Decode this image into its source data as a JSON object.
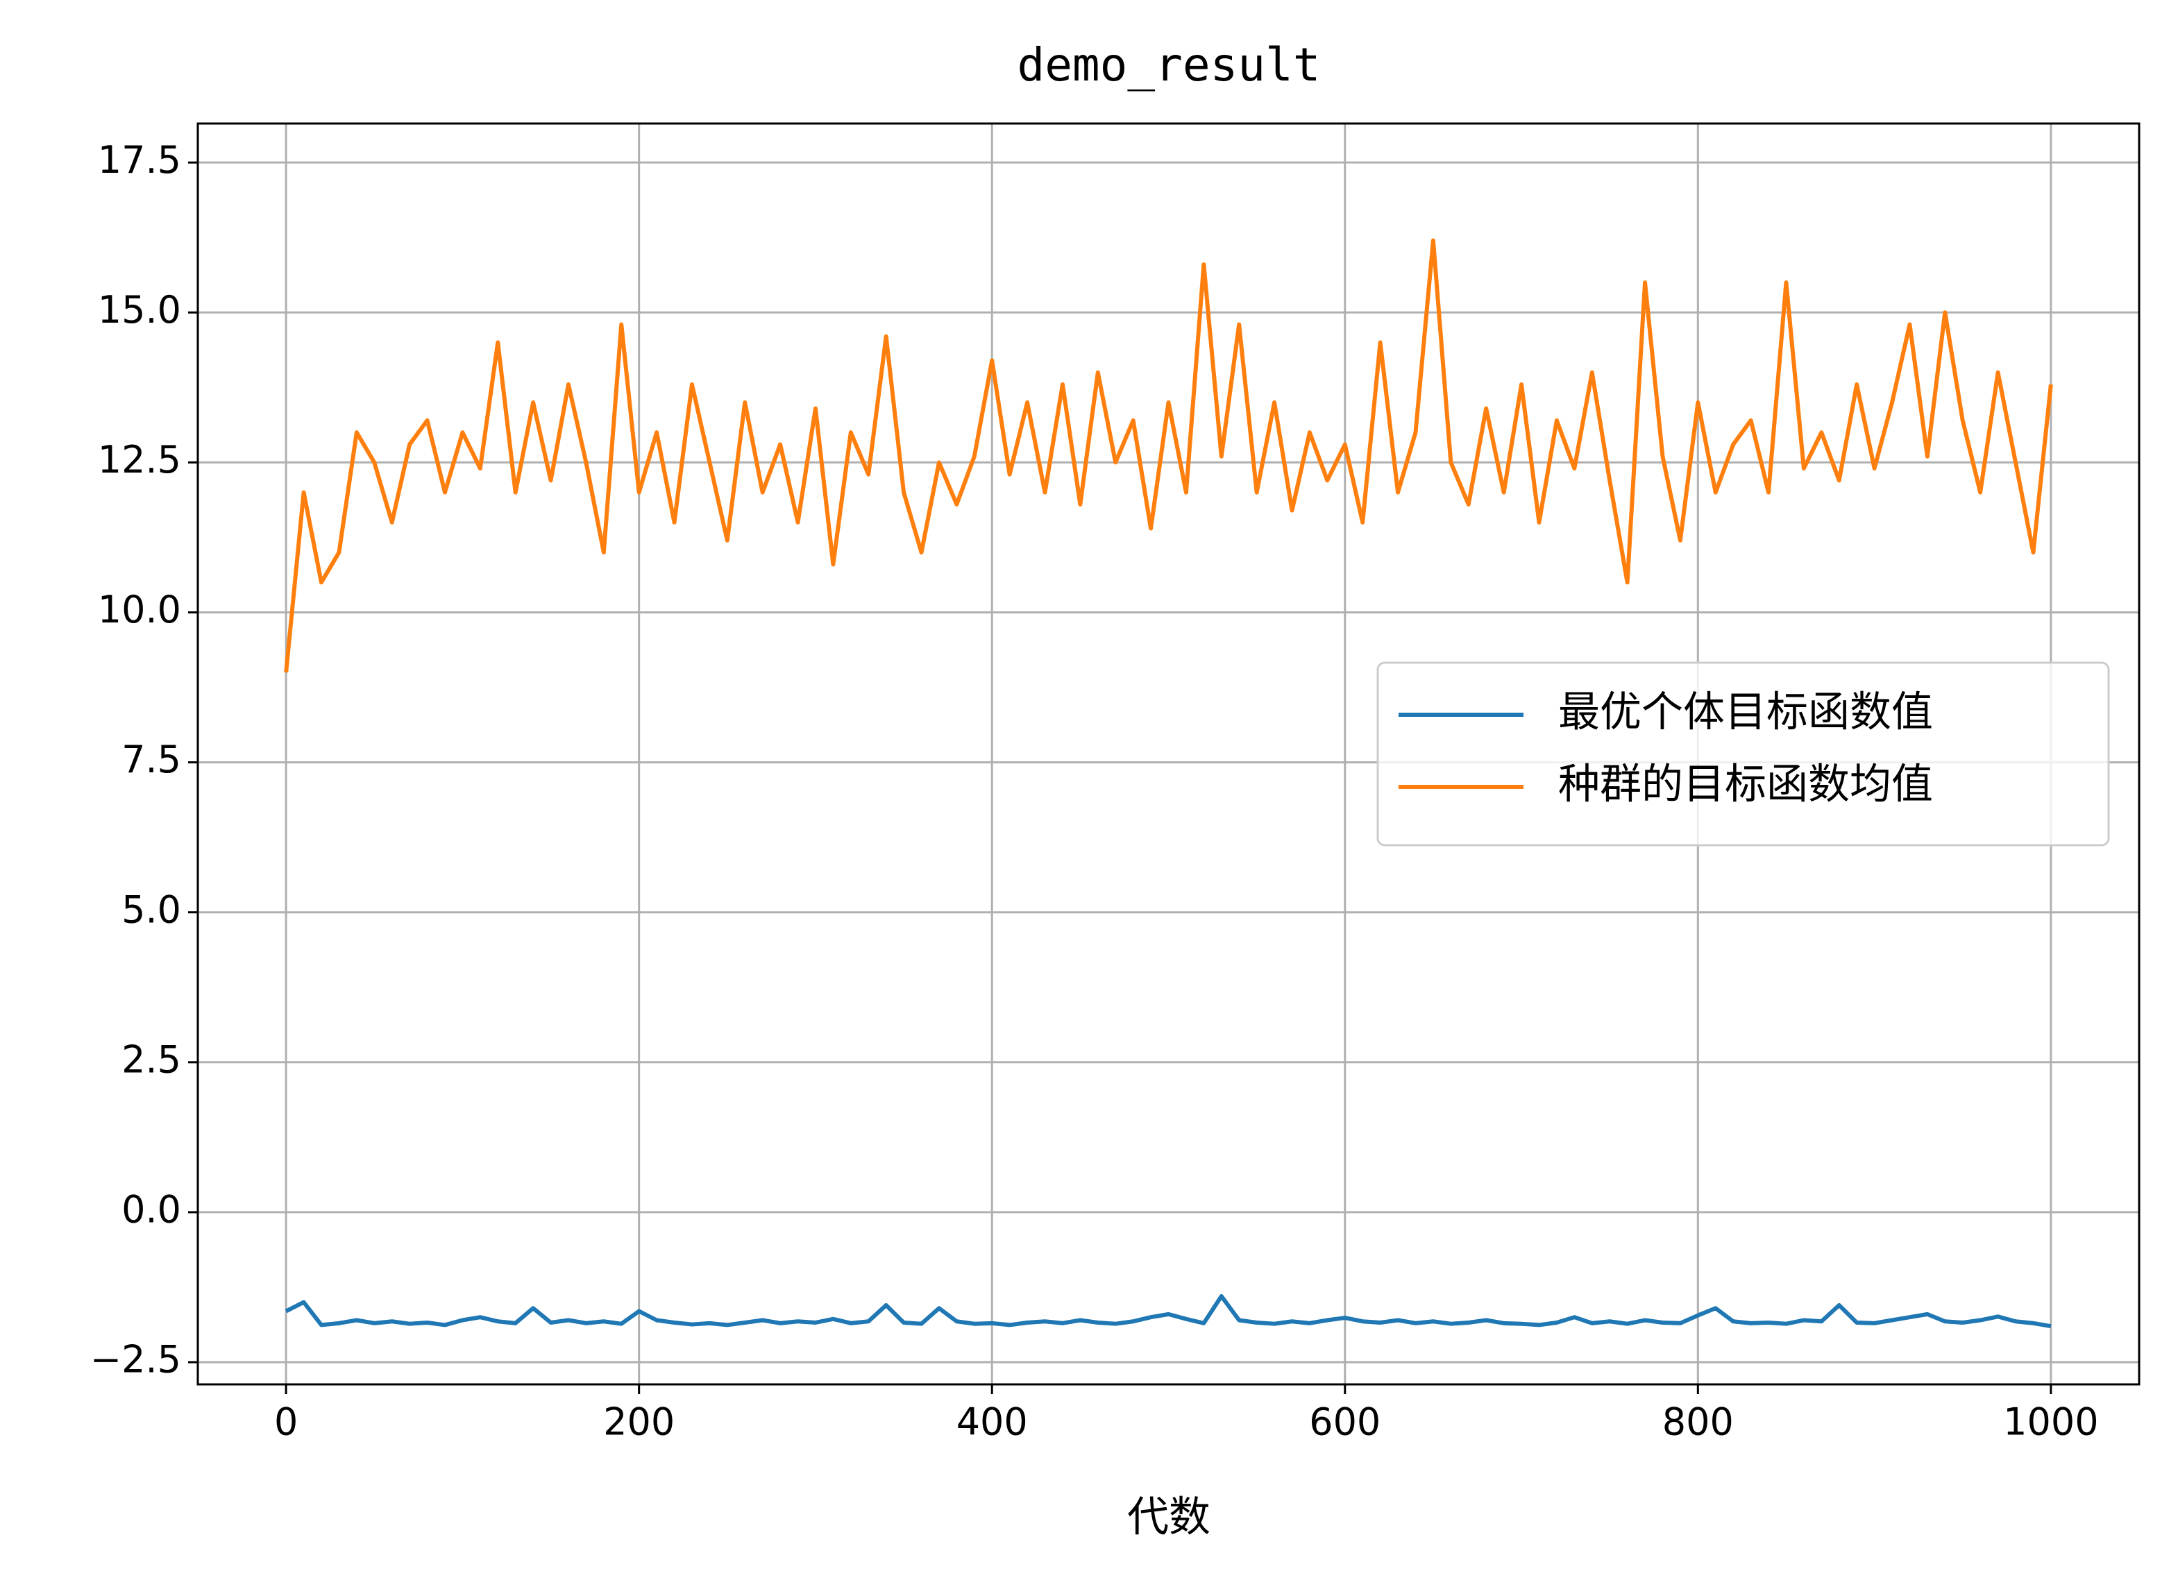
{
  "chart_data": {
    "type": "line",
    "title": "demo_result",
    "xlabel": "代数",
    "x": [
      0,
      10,
      20,
      30,
      40,
      50,
      60,
      70,
      80,
      90,
      100,
      110,
      120,
      130,
      140,
      150,
      160,
      170,
      180,
      190,
      200,
      210,
      220,
      230,
      240,
      250,
      260,
      270,
      280,
      290,
      300,
      310,
      320,
      330,
      340,
      350,
      360,
      370,
      380,
      390,
      400,
      410,
      420,
      430,
      440,
      450,
      460,
      470,
      480,
      490,
      500,
      510,
      520,
      530,
      540,
      550,
      560,
      570,
      580,
      590,
      600,
      610,
      620,
      630,
      640,
      650,
      660,
      670,
      680,
      690,
      700,
      710,
      720,
      730,
      740,
      750,
      760,
      770,
      780,
      790,
      800,
      810,
      820,
      830,
      840,
      850,
      860,
      870,
      880,
      890,
      900,
      910,
      920,
      930,
      940,
      950,
      960,
      970,
      980,
      990,
      1000
    ],
    "series": [
      {
        "name": "最优个体目标函数值",
        "color": "#1f77b4",
        "values": [
          -1.65,
          -1.5,
          -1.88,
          -1.85,
          -1.8,
          -1.85,
          -1.82,
          -1.86,
          -1.84,
          -1.88,
          -1.8,
          -1.75,
          -1.82,
          -1.85,
          -1.6,
          -1.84,
          -1.8,
          -1.85,
          -1.82,
          -1.86,
          -1.65,
          -1.8,
          -1.84,
          -1.87,
          -1.85,
          -1.88,
          -1.84,
          -1.8,
          -1.85,
          -1.82,
          -1.84,
          -1.78,
          -1.85,
          -1.82,
          -1.55,
          -1.84,
          -1.86,
          -1.6,
          -1.82,
          -1.86,
          -1.85,
          -1.88,
          -1.84,
          -1.82,
          -1.85,
          -1.8,
          -1.84,
          -1.86,
          -1.82,
          -1.75,
          -1.7,
          -1.78,
          -1.85,
          -1.4,
          -1.8,
          -1.84,
          -1.86,
          -1.82,
          -1.85,
          -1.8,
          -1.76,
          -1.82,
          -1.84,
          -1.8,
          -1.85,
          -1.82,
          -1.86,
          -1.84,
          -1.8,
          -1.85,
          -1.86,
          -1.88,
          -1.84,
          -1.75,
          -1.85,
          -1.82,
          -1.86,
          -1.8,
          -1.84,
          -1.85,
          -1.72,
          -1.6,
          -1.82,
          -1.85,
          -1.84,
          -1.86,
          -1.8,
          -1.82,
          -1.55,
          -1.84,
          -1.85,
          -1.8,
          -1.75,
          -1.7,
          -1.82,
          -1.84,
          -1.8,
          -1.74,
          -1.82,
          -1.85,
          -1.9
        ]
      },
      {
        "name": "种群的目标函数均值",
        "color": "#ff7f0e",
        "values": [
          9.0,
          12.0,
          10.5,
          11.0,
          13.0,
          12.5,
          11.5,
          12.8,
          13.2,
          12.0,
          13.0,
          12.4,
          14.5,
          12.0,
          13.5,
          12.2,
          13.8,
          12.5,
          11.0,
          14.8,
          12.0,
          13.0,
          11.5,
          13.8,
          12.5,
          11.2,
          13.5,
          12.0,
          12.8,
          11.5,
          13.4,
          10.8,
          13.0,
          12.3,
          14.6,
          12.0,
          11.0,
          12.5,
          11.8,
          12.6,
          14.2,
          12.3,
          13.5,
          12.0,
          13.8,
          11.8,
          14.0,
          12.5,
          13.2,
          11.4,
          13.5,
          12.0,
          15.8,
          12.6,
          14.8,
          12.0,
          13.5,
          11.7,
          13.0,
          12.2,
          12.8,
          11.5,
          14.5,
          12.0,
          13.0,
          16.2,
          12.5,
          11.8,
          13.4,
          12.0,
          13.8,
          11.5,
          13.2,
          12.4,
          14.0,
          12.2,
          10.5,
          15.5,
          12.6,
          11.2,
          13.5,
          12.0,
          12.8,
          13.2,
          12.0,
          15.5,
          12.4,
          13.0,
          12.2,
          13.8,
          12.4,
          13.5,
          14.8,
          12.6,
          15.0,
          13.2,
          12.0,
          14.0,
          12.5,
          11.0,
          13.8
        ]
      }
    ],
    "xlim": [
      -50,
      1050
    ],
    "ylim": [
      -2.87,
      18.15
    ],
    "xticks": [
      0,
      200,
      400,
      600,
      800,
      1000
    ],
    "yticks": [
      {
        "value": -2.5,
        "label": "−2.5"
      },
      {
        "value": 0,
        "label": "0.0"
      },
      2.5,
      {
        "value": 5,
        "label": "5.0"
      },
      7.5,
      {
        "value": 10,
        "label": "10.0"
      },
      12.5,
      {
        "value": 15,
        "label": "15.0"
      },
      17.5
    ],
    "grid": true,
    "legend": "center right"
  }
}
